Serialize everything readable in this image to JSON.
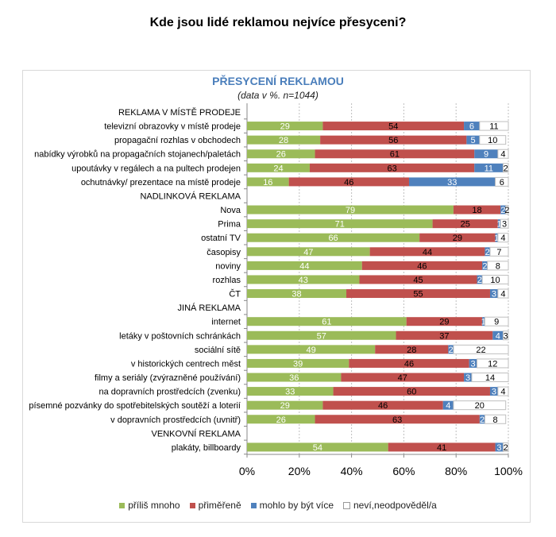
{
  "page_title": "Kde jsou lidé reklamou nejvíce přesyceni?",
  "chart_data": {
    "type": "bar",
    "stacked": true,
    "orientation": "horizontal",
    "title": "PŘESYCENÍ REKLAMOU",
    "subtitle": "(data v %. n=1044)",
    "xlim": [
      0,
      100
    ],
    "xticks": [
      "0%",
      "20%",
      "40%",
      "60%",
      "80%",
      "100%"
    ],
    "series_names": [
      "příliš mnoho",
      "přiměřeně",
      "mohlo by být více",
      "neví,neodpověděl/a"
    ],
    "colors": [
      "#9bbb59",
      "#c0504d",
      "#4f81bd",
      "#ffffff"
    ],
    "rows": [
      {
        "label": "REKLAMA V MÍSTĚ PRODEJE",
        "header": true
      },
      {
        "label": "televizní obrazovky v místě prodeje",
        "values": [
          29,
          54,
          6,
          11
        ]
      },
      {
        "label": "propagační rozhlas v obchodech",
        "values": [
          28,
          56,
          5,
          10
        ]
      },
      {
        "label": "nabídky výrobků na propagačních stojanech/paletách",
        "values": [
          26,
          61,
          9,
          4
        ]
      },
      {
        "label": "upoutávky v regálech a na pultech prodejen",
        "values": [
          24,
          63,
          11,
          2
        ]
      },
      {
        "label": "ochutnávky/ prezentace na místě prodeje",
        "values": [
          16,
          46,
          33,
          6
        ]
      },
      {
        "label": "NADLINKOVÁ REKLAMA",
        "header": true
      },
      {
        "label": "Nova",
        "values": [
          79,
          18,
          2,
          2
        ]
      },
      {
        "label": "Prima",
        "values": [
          71,
          25,
          1,
          3
        ]
      },
      {
        "label": "ostatní TV",
        "values": [
          66,
          29,
          1,
          4
        ]
      },
      {
        "label": "časopisy",
        "values": [
          47,
          44,
          2,
          7
        ]
      },
      {
        "label": "noviny",
        "values": [
          44,
          46,
          2,
          8
        ]
      },
      {
        "label": "rozhlas",
        "values": [
          43,
          45,
          2,
          10
        ]
      },
      {
        "label": "ČT",
        "values": [
          38,
          55,
          3,
          4
        ]
      },
      {
        "label": "JINÁ REKLAMA",
        "header": true
      },
      {
        "label": "internet",
        "values": [
          61,
          29,
          1,
          9
        ]
      },
      {
        "label": "letáky v poštovních schránkách",
        "values": [
          57,
          37,
          4,
          3
        ]
      },
      {
        "label": "sociální sítě",
        "values": [
          49,
          28,
          2,
          22
        ]
      },
      {
        "label": "v historických centrech měst",
        "values": [
          39,
          46,
          3,
          12
        ]
      },
      {
        "label": "filmy a seriály (zvýrazněné používání)",
        "values": [
          36,
          47,
          3,
          14
        ]
      },
      {
        "label": "na dopravních prostředcích (zvenku)",
        "values": [
          33,
          60,
          3,
          4
        ]
      },
      {
        "label": "písemné pozvánky do spotřebitelských soutěží a loterií",
        "values": [
          29,
          46,
          4,
          20
        ]
      },
      {
        "label": "v dopravních prostředcích (uvnitř)",
        "values": [
          26,
          63,
          2,
          8
        ]
      },
      {
        "label": "VENKOVNÍ REKLAMA",
        "header": true
      },
      {
        "label": "plakáty, billboardy",
        "values": [
          54,
          41,
          3,
          2
        ]
      }
    ]
  }
}
